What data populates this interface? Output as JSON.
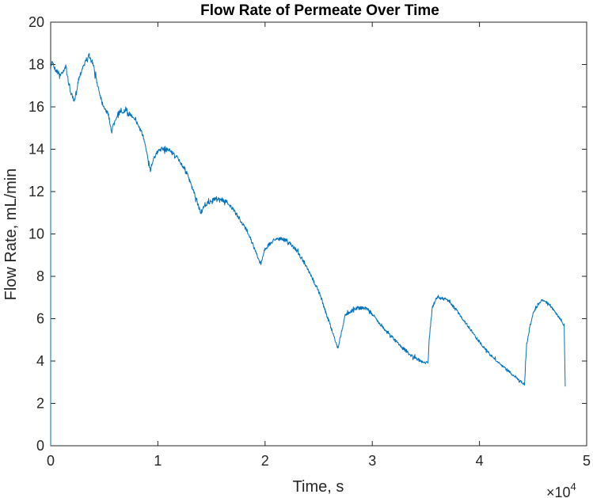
{
  "chart_data": {
    "type": "line",
    "title": "Flow Rate of Permeate Over Time",
    "xlabel": "Time, s",
    "ylabel": "Flow Rate, mL/min",
    "x_exponent_label": {
      "base": "×10",
      "power": "4"
    },
    "xlim": [
      0,
      50000
    ],
    "ylim": [
      0,
      20
    ],
    "x_ticks": [
      0,
      10000,
      20000,
      30000,
      40000,
      50000
    ],
    "x_tick_labels": [
      "0",
      "1",
      "2",
      "3",
      "4",
      "5"
    ],
    "y_ticks": [
      0,
      2,
      4,
      6,
      8,
      10,
      12,
      14,
      16,
      18,
      20
    ],
    "y_tick_labels": [
      "0",
      "2",
      "4",
      "6",
      "8",
      "10",
      "12",
      "14",
      "16",
      "18",
      "20"
    ],
    "grid": false,
    "series_color": "#0072BD",
    "series": [
      {
        "x": [
          0,
          150,
          400,
          900,
          1400,
          1800,
          2200,
          2600,
          3000,
          3500,
          3900,
          4300,
          4800,
          5400,
          5700,
          5900,
          6300,
          7000,
          7800,
          8500,
          9000,
          9300,
          9600,
          10200,
          11000,
          11800,
          12600,
          13400,
          14000,
          14500,
          15500,
          16500,
          17500,
          18500,
          19300,
          19600,
          20000,
          21000,
          22000,
          23000,
          24000,
          25000,
          26000,
          26800,
          27100,
          27500,
          28500,
          29500,
          30500,
          31500,
          32500,
          33500,
          34500,
          35200,
          35300,
          35600,
          36000,
          37000,
          38000,
          39000,
          40000,
          41000,
          42000,
          43000,
          44200,
          44400,
          45000,
          45800,
          46500,
          47200,
          47900,
          48000
        ],
        "y": [
          17.8,
          18.2,
          17.8,
          17.5,
          17.9,
          16.8,
          16.2,
          17.3,
          17.9,
          18.4,
          18.1,
          17.2,
          16.2,
          15.6,
          14.8,
          15.3,
          15.7,
          15.8,
          15.5,
          14.8,
          13.8,
          13.0,
          13.6,
          14.0,
          14.0,
          13.6,
          13.0,
          11.9,
          11.0,
          11.4,
          11.7,
          11.5,
          10.8,
          10.0,
          8.9,
          8.6,
          9.3,
          9.8,
          9.7,
          9.2,
          8.3,
          7.3,
          5.8,
          4.6,
          5.3,
          6.2,
          6.5,
          6.5,
          5.9,
          5.3,
          4.8,
          4.3,
          4.0,
          3.9,
          5.0,
          6.5,
          7.0,
          6.9,
          6.3,
          5.6,
          4.9,
          4.3,
          3.8,
          3.4,
          2.9,
          4.8,
          6.3,
          6.9,
          6.7,
          6.2,
          5.7,
          2.8
        ]
      }
    ]
  }
}
